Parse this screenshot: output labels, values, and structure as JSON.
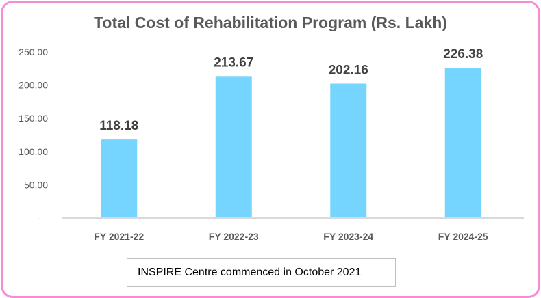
{
  "chart_data": {
    "type": "bar",
    "title": "Total Cost of Rehabilitation Program (Rs. Lakh)",
    "categories": [
      "FY 2021-22",
      "FY 2022-23",
      "FY 2023-24",
      "FY 2024-25"
    ],
    "values": [
      118.18,
      213.67,
      202.16,
      226.38
    ],
    "data_labels": [
      "118.18",
      "213.67",
      "202.16",
      "226.38"
    ],
    "y_ticks": [
      0,
      50,
      100,
      150,
      200,
      250
    ],
    "y_tick_labels": [
      "-",
      "50.00",
      "100.00",
      "150.00",
      "200.00",
      "250.00"
    ],
    "ylim": [
      0,
      250
    ],
    "xlabel": "",
    "ylabel": "",
    "grid": false,
    "bar_color": "#75d5fe",
    "annotation": "INSPIRE Centre commenced in October 2021"
  }
}
